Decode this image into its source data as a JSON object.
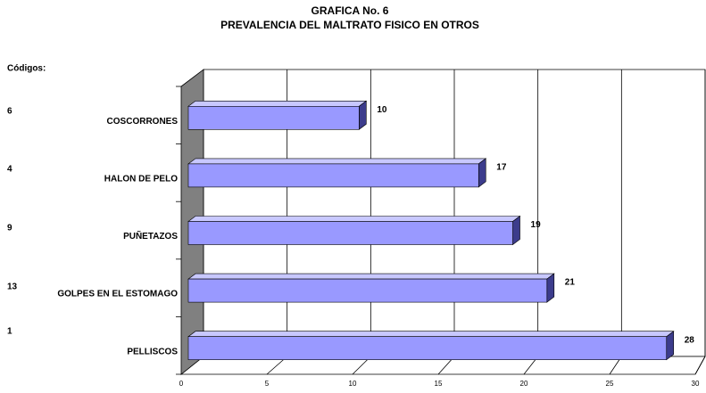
{
  "chart_data": {
    "type": "bar3d",
    "title": "GRAFICA No. 6",
    "subtitle": "PREVALENCIA DEL MALTRATO FISICO EN OTROS",
    "codes_label": "Códigos:",
    "codes": [
      6,
      4,
      9,
      13,
      1
    ],
    "categories": [
      "COSCORRONES",
      "HALON DE PELO",
      "PUÑETAZOS",
      "GOLPES EN EL ESTOMAGO",
      "PELLISCOS"
    ],
    "values": [
      10,
      17,
      19,
      21,
      28
    ],
    "color": "#9999ff",
    "xlim": [
      0,
      30
    ],
    "xticks": [
      0,
      5,
      10,
      15,
      20,
      25,
      30
    ],
    "grid": true
  }
}
